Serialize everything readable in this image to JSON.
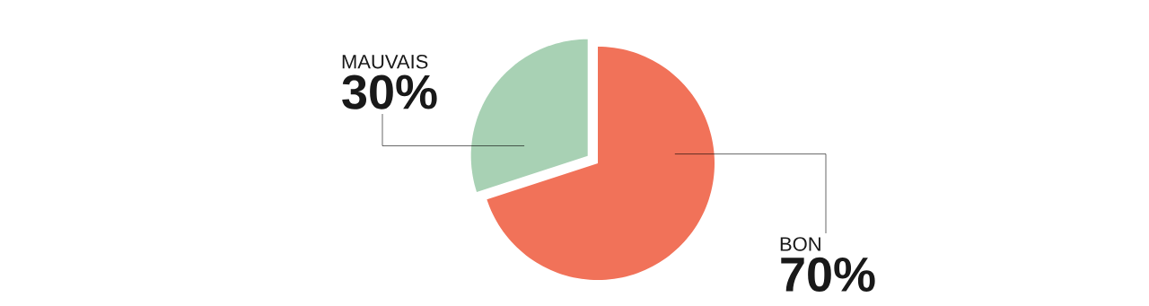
{
  "chart_data": {
    "type": "pie",
    "categories": [
      "BON",
      "MAUVAIS"
    ],
    "values": [
      70,
      30
    ],
    "colors": [
      "#f17259",
      "#a8d1b4"
    ],
    "value_labels": [
      "70%",
      "30%"
    ]
  }
}
